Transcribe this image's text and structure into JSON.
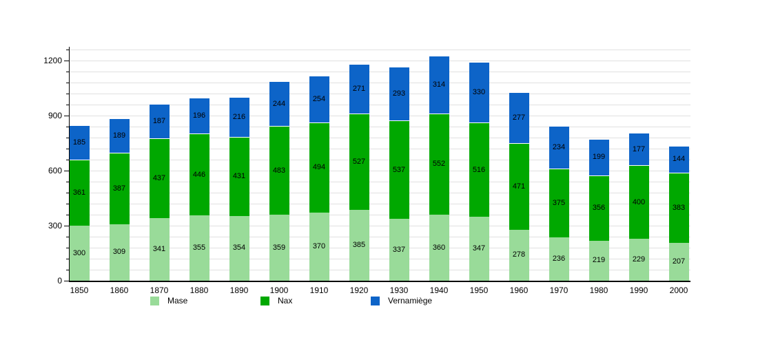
{
  "chart_data": {
    "type": "bar",
    "stacked": true,
    "title": "",
    "xlabel": "",
    "ylabel": "",
    "categories": [
      "1850",
      "1860",
      "1870",
      "1880",
      "1890",
      "1900",
      "1910",
      "1920",
      "1930",
      "1940",
      "1950",
      "1960",
      "1970",
      "1980",
      "1990",
      "2000"
    ],
    "series": [
      {
        "name": "Mase",
        "color": "#99DB99",
        "values": [
          300,
          309,
          341,
          355,
          354,
          359,
          370,
          385,
          337,
          360,
          347,
          278,
          236,
          219,
          229,
          207
        ]
      },
      {
        "name": "Nax",
        "color": "#00A800",
        "values": [
          361,
          387,
          437,
          446,
          431,
          483,
          494,
          527,
          537,
          552,
          516,
          471,
          375,
          356,
          400,
          383
        ]
      },
      {
        "name": "Vernamiège",
        "color": "#0D64C8",
        "values": [
          185,
          189,
          187,
          196,
          216,
          244,
          254,
          271,
          293,
          314,
          330,
          277,
          234,
          199,
          177,
          144
        ]
      }
    ],
    "ylim": [
      0,
      1275
    ],
    "yticks": [
      0,
      300,
      600,
      900,
      1200
    ],
    "minor_grid_step": 60,
    "grid": true,
    "legend_position": "bottom",
    "show_value_labels": true
  },
  "style": {
    "background": "#ffffff",
    "grid_color": "#e0e0e0",
    "axis_color": "#000000",
    "label_color": "#000000",
    "separator_color": "#ffffff"
  }
}
